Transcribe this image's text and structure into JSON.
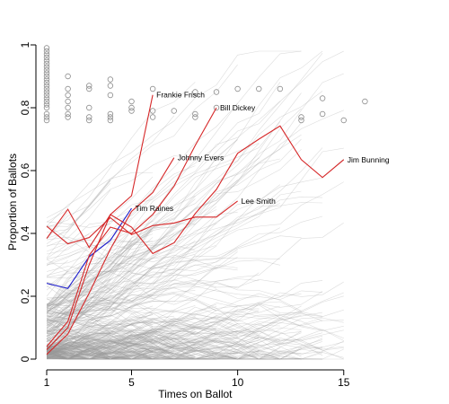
{
  "chart_data": {
    "type": "line",
    "title": "",
    "xlabel": "Times on Ballot",
    "ylabel": "Proportion of Ballots",
    "xlim": [
      1,
      19.2
    ],
    "ylim": [
      0,
      1
    ],
    "x_ticks": [
      1,
      5,
      10,
      15
    ],
    "y_ticks": [
      0,
      0.2,
      0.4,
      0.6,
      0.8,
      1
    ],
    "grid": false,
    "legend": "none",
    "colors": {
      "background_lines": "#9a9a9a",
      "highlight": "#d62728",
      "tim_raines": "#1a1acd",
      "points": "#8c8c8c",
      "axis": "#000000"
    },
    "highlighted_series": [
      {
        "label": "Tim Raines",
        "color": "blue",
        "x": [
          1,
          2,
          3,
          4,
          5
        ],
        "y": [
          0.241,
          0.225,
          0.326,
          0.378,
          0.48
        ]
      },
      {
        "label": "Frankie Frisch",
        "color": "red",
        "x": [
          1,
          2,
          3,
          4,
          5,
          6
        ],
        "y": [
          0.03,
          0.1,
          0.3,
          0.46,
          0.52,
          0.841
        ]
      },
      {
        "label": "Bill Dickey",
        "color": "red",
        "x": [
          1,
          2,
          3,
          4,
          5,
          6,
          7,
          8,
          9
        ],
        "y": [
          0.04,
          0.12,
          0.33,
          0.42,
          0.4,
          0.46,
          0.55,
          0.68,
          0.8
        ]
      },
      {
        "label": "Johnny Evers",
        "color": "red",
        "x": [
          1,
          2,
          3,
          4,
          5,
          6,
          7
        ],
        "y": [
          0.015,
          0.08,
          0.21,
          0.35,
          0.47,
          0.53,
          0.641
        ]
      },
      {
        "label": "Lee Smith",
        "color": "red",
        "x": [
          1,
          2,
          3,
          4,
          5,
          6,
          7,
          8,
          9,
          10
        ],
        "y": [
          0.423,
          0.367,
          0.387,
          0.45,
          0.396,
          0.425,
          0.433,
          0.452,
          0.452,
          0.503
        ]
      },
      {
        "label": "Jim Bunning",
        "color": "red",
        "x": [
          1,
          2,
          3,
          4,
          5,
          6,
          7,
          8,
          9,
          10,
          11,
          12,
          13,
          14,
          15
        ],
        "y": [
          0.384,
          0.477,
          0.355,
          0.46,
          0.42,
          0.336,
          0.37,
          0.463,
          0.54,
          0.655,
          0.7,
          0.742,
          0.635,
          0.578,
          0.635
        ]
      }
    ],
    "annotations": [
      {
        "text": "Frankie Frisch",
        "x": 6,
        "y": 0.841
      },
      {
        "text": "Bill Dickey",
        "x": 9,
        "y": 0.8
      },
      {
        "text": "Johnny Evers",
        "x": 7,
        "y": 0.641
      },
      {
        "text": "Tim Raines",
        "x": 5,
        "y": 0.48
      },
      {
        "text": "Lee Smith",
        "x": 10,
        "y": 0.503
      },
      {
        "text": "Jim Bunning",
        "x": 15,
        "y": 0.635
      }
    ],
    "election_points": [
      {
        "x": 1,
        "y": [
          0.99,
          0.98,
          0.97,
          0.96,
          0.95,
          0.94,
          0.93,
          0.92,
          0.91,
          0.9,
          0.89,
          0.88,
          0.87,
          0.86,
          0.85,
          0.84,
          0.83,
          0.82,
          0.81,
          0.8,
          0.78,
          0.77,
          0.76
        ]
      },
      {
        "x": 2,
        "y": [
          0.9,
          0.86,
          0.84,
          0.82,
          0.8,
          0.78,
          0.77
        ]
      },
      {
        "x": 3,
        "y": [
          0.87,
          0.86,
          0.8,
          0.77,
          0.76
        ]
      },
      {
        "x": 4,
        "y": [
          0.89,
          0.87,
          0.84,
          0.78,
          0.77,
          0.76
        ]
      },
      {
        "x": 5,
        "y": [
          0.82,
          0.8,
          0.79
        ]
      },
      {
        "x": 6,
        "y": [
          0.86,
          0.79,
          0.77
        ]
      },
      {
        "x": 7,
        "y": [
          0.79
        ]
      },
      {
        "x": 8,
        "y": [
          0.85,
          0.78,
          0.77
        ]
      },
      {
        "x": 9,
        "y": [
          0.85,
          0.8
        ]
      },
      {
        "x": 10,
        "y": [
          0.86
        ]
      },
      {
        "x": 11,
        "y": [
          0.86
        ]
      },
      {
        "x": 12,
        "y": [
          0.86
        ]
      },
      {
        "x": 13,
        "y": [
          0.77,
          0.76
        ]
      },
      {
        "x": 14,
        "y": [
          0.83,
          0.78
        ]
      },
      {
        "x": 15,
        "y": [
          0.76
        ]
      },
      {
        "x": 16,
        "y": [
          0.82
        ]
      }
    ]
  }
}
